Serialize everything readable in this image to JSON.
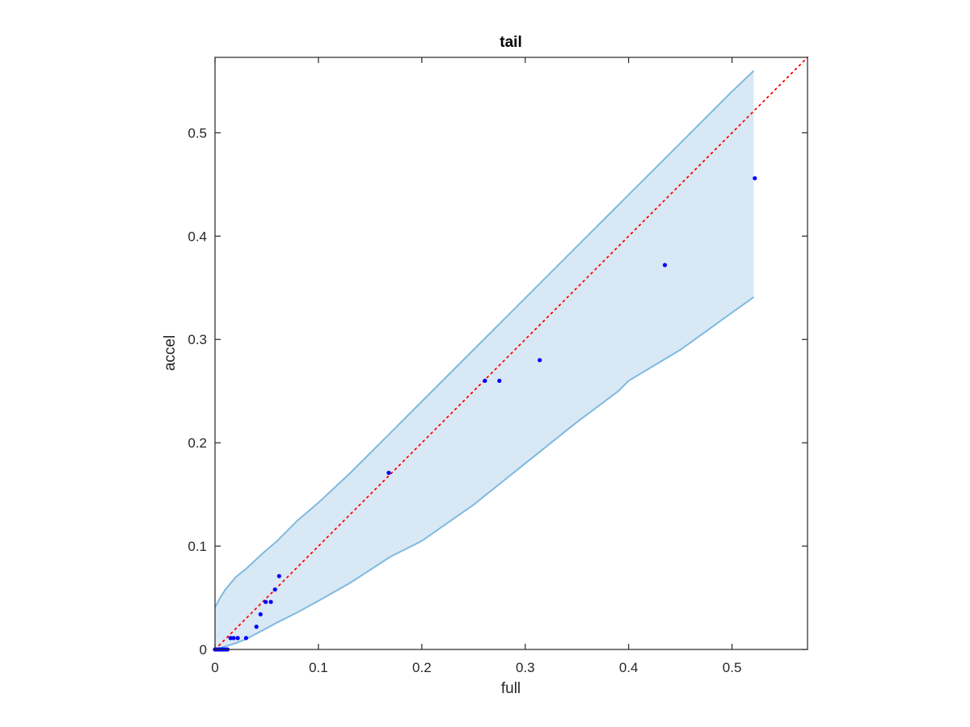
{
  "chart_data": {
    "type": "scatter",
    "title": "tail",
    "xlabel": "full",
    "ylabel": "accel",
    "xlim": [
      0,
      0.573
    ],
    "ylim": [
      0,
      0.573
    ],
    "xticks": [
      0,
      0.1,
      0.2,
      0.3,
      0.4,
      0.5
    ],
    "yticks": [
      0,
      0.1,
      0.2,
      0.3,
      0.4,
      0.5
    ],
    "xtick_labels": [
      "0",
      "0.1",
      "0.2",
      "0.3",
      "0.4",
      "0.5"
    ],
    "ytick_labels": [
      "0",
      "0.1",
      "0.2",
      "0.3",
      "0.4",
      "0.5"
    ],
    "grid": false,
    "box": true,
    "reference_line": {
      "style": "dotted",
      "color": "#ff0000",
      "x": [
        0,
        0.573
      ],
      "y": [
        0,
        0.573
      ]
    },
    "band": {
      "fill_color": "#d9e8f5",
      "edge_color": "#7fb9e0",
      "x": [
        0,
        0.005,
        0.01,
        0.02,
        0.03,
        0.045,
        0.06,
        0.08,
        0.1,
        0.13,
        0.17,
        0.2,
        0.25,
        0.3,
        0.35,
        0.39,
        0.4,
        0.45,
        0.5,
        0.521
      ],
      "upper": [
        0.041,
        0.05,
        0.058,
        0.07,
        0.078,
        0.092,
        0.105,
        0.125,
        0.142,
        0.17,
        0.21,
        0.24,
        0.29,
        0.34,
        0.39,
        0.43,
        0.44,
        0.49,
        0.54,
        0.56
      ],
      "lower": [
        0,
        0.0015,
        0.003,
        0.006,
        0.01,
        0.018,
        0.026,
        0.036,
        0.047,
        0.064,
        0.09,
        0.105,
        0.14,
        0.18,
        0.22,
        0.25,
        0.26,
        0.29,
        0.326,
        0.341
      ]
    },
    "series": [
      {
        "color": "#0000ff",
        "x": [
          0,
          0.002,
          0.004,
          0.006,
          0.008,
          0.01,
          0.012,
          0.015,
          0.018,
          0.022,
          0.03,
          0.04,
          0.044,
          0.049,
          0.054,
          0.058,
          0.062,
          0.168,
          0.261,
          0.275,
          0.314,
          0.435,
          0.522
        ],
        "y": [
          0,
          0,
          0,
          0,
          0,
          0,
          0,
          0.011,
          0.011,
          0.011,
          0.011,
          0.022,
          0.034,
          0.046,
          0.046,
          0.058,
          0.071,
          0.171,
          0.26,
          0.26,
          0.28,
          0.372,
          0.456
        ]
      }
    ]
  }
}
